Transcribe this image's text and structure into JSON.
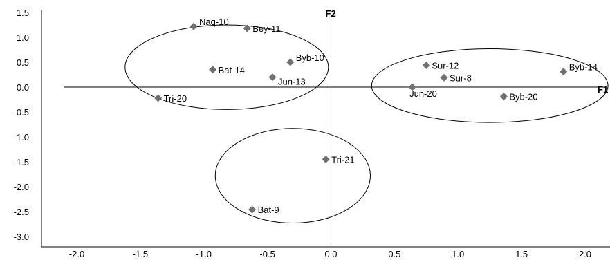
{
  "chart_data": {
    "type": "scatter",
    "title": "",
    "xlabel": "F1",
    "ylabel": "F2",
    "xlim": [
      -2.0,
      2.0
    ],
    "ylim": [
      -3.0,
      1.5
    ],
    "x_ticks": [
      "-2.0",
      "-1.5",
      "-1.0",
      "-0.5",
      "0.0",
      "0.5",
      "1.0",
      "1.5",
      "2.0"
    ],
    "y_ticks": [
      "1.5",
      "1.0",
      "0.5",
      "0.0",
      "-0.5",
      "-1.0",
      "-1.5",
      "-2.0",
      "-2.5",
      "-3.0"
    ],
    "points": [
      {
        "label": "Naq-10",
        "x": -1.08,
        "y": 1.22,
        "label_pos": "above-right"
      },
      {
        "label": "Bey-11",
        "x": -0.66,
        "y": 1.18,
        "label_pos": "right"
      },
      {
        "label": "Byb-10",
        "x": -0.32,
        "y": 0.5,
        "label_pos": "above-right"
      },
      {
        "label": "Bat-14",
        "x": -0.93,
        "y": 0.35,
        "label_pos": "right"
      },
      {
        "label": "Jun-13",
        "x": -0.46,
        "y": 0.2,
        "label_pos": "below-right"
      },
      {
        "label": "Tri-20",
        "x": -1.36,
        "y": -0.22,
        "label_pos": "right"
      },
      {
        "label": "Sur-12",
        "x": 0.75,
        "y": 0.44,
        "label_pos": "right"
      },
      {
        "label": "Sur-8",
        "x": 0.89,
        "y": 0.19,
        "label_pos": "right"
      },
      {
        "label": "Jun-20",
        "x": 0.64,
        "y": 0.0,
        "label_pos": "below"
      },
      {
        "label": "Byb-14",
        "x": 1.83,
        "y": 0.31,
        "label_pos": "above-right"
      },
      {
        "label": "Byb-20",
        "x": 1.36,
        "y": -0.19,
        "label_pos": "right"
      },
      {
        "label": "Tri-21",
        "x": -0.04,
        "y": -1.45,
        "label_pos": "right"
      },
      {
        "label": "Bat-9",
        "x": -0.62,
        "y": -2.46,
        "label_pos": "right"
      }
    ],
    "clusters": [
      {
        "cx": -0.82,
        "cy": 0.4,
        "rx": 0.8,
        "ry": 0.85
      },
      {
        "cx": 1.25,
        "cy": 0.03,
        "rx": 0.93,
        "ry": 0.74
      },
      {
        "cx": -0.3,
        "cy": -1.78,
        "rx": 0.61,
        "ry": 0.95
      }
    ],
    "grid": false,
    "legend": "none",
    "marker_color": "#707070",
    "line_color": "#000000"
  }
}
